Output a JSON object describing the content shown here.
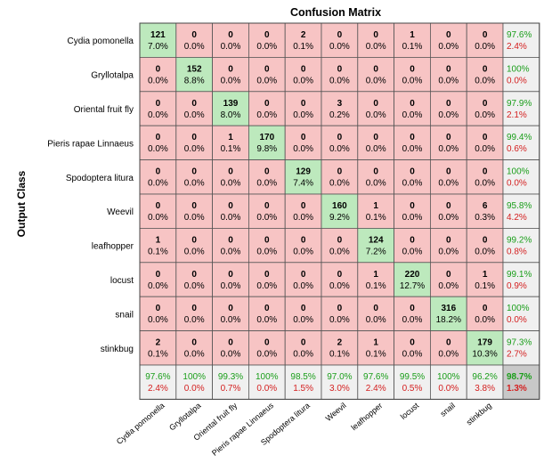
{
  "chart_data": {
    "type": "heatmap",
    "title": "Confusion Matrix",
    "ylabel": "Output Class",
    "xlabel": "",
    "classes": [
      "Cydia pomonella",
      "Gryllotalpa",
      "Oriental fruit fly",
      "Pieris rapae Linnaeus",
      "Spodoptera litura",
      "Weevil",
      "leafhopper",
      "locust",
      "snail",
      "stinkbug"
    ],
    "counts": [
      [
        121,
        0,
        0,
        0,
        2,
        0,
        0,
        1,
        0,
        0
      ],
      [
        0,
        152,
        0,
        0,
        0,
        0,
        0,
        0,
        0,
        0
      ],
      [
        0,
        0,
        139,
        0,
        0,
        3,
        0,
        0,
        0,
        0
      ],
      [
        0,
        0,
        1,
        170,
        0,
        0,
        0,
        0,
        0,
        0
      ],
      [
        0,
        0,
        0,
        0,
        129,
        0,
        0,
        0,
        0,
        0
      ],
      [
        0,
        0,
        0,
        0,
        0,
        160,
        1,
        0,
        0,
        6
      ],
      [
        1,
        0,
        0,
        0,
        0,
        0,
        124,
        0,
        0,
        0
      ],
      [
        0,
        0,
        0,
        0,
        0,
        0,
        1,
        220,
        0,
        1
      ],
      [
        0,
        0,
        0,
        0,
        0,
        0,
        0,
        0,
        316,
        0
      ],
      [
        2,
        0,
        0,
        0,
        0,
        2,
        1,
        0,
        0,
        179
      ]
    ],
    "percents": [
      [
        "7.0%",
        "0.0%",
        "0.0%",
        "0.0%",
        "0.1%",
        "0.0%",
        "0.0%",
        "0.1%",
        "0.0%",
        "0.0%"
      ],
      [
        "0.0%",
        "8.8%",
        "0.0%",
        "0.0%",
        "0.0%",
        "0.0%",
        "0.0%",
        "0.0%",
        "0.0%",
        "0.0%"
      ],
      [
        "0.0%",
        "0.0%",
        "8.0%",
        "0.0%",
        "0.0%",
        "0.2%",
        "0.0%",
        "0.0%",
        "0.0%",
        "0.0%"
      ],
      [
        "0.0%",
        "0.0%",
        "0.1%",
        "9.8%",
        "0.0%",
        "0.0%",
        "0.0%",
        "0.0%",
        "0.0%",
        "0.0%"
      ],
      [
        "0.0%",
        "0.0%",
        "0.0%",
        "0.0%",
        "7.4%",
        "0.0%",
        "0.0%",
        "0.0%",
        "0.0%",
        "0.0%"
      ],
      [
        "0.0%",
        "0.0%",
        "0.0%",
        "0.0%",
        "0.0%",
        "9.2%",
        "0.1%",
        "0.0%",
        "0.0%",
        "0.3%"
      ],
      [
        "0.1%",
        "0.0%",
        "0.0%",
        "0.0%",
        "0.0%",
        "0.0%",
        "7.2%",
        "0.0%",
        "0.0%",
        "0.0%"
      ],
      [
        "0.0%",
        "0.0%",
        "0.0%",
        "0.0%",
        "0.0%",
        "0.0%",
        "0.1%",
        "12.7%",
        "0.0%",
        "0.1%"
      ],
      [
        "0.0%",
        "0.0%",
        "0.0%",
        "0.0%",
        "0.0%",
        "0.0%",
        "0.0%",
        "0.0%",
        "18.2%",
        "0.0%"
      ],
      [
        "0.1%",
        "0.0%",
        "0.0%",
        "0.0%",
        "0.0%",
        "0.1%",
        "0.1%",
        "0.0%",
        "0.0%",
        "10.3%"
      ]
    ],
    "row_summary": [
      [
        "97.6%",
        "2.4%"
      ],
      [
        "100%",
        "0.0%"
      ],
      [
        "97.9%",
        "2.1%"
      ],
      [
        "99.4%",
        "0.6%"
      ],
      [
        "100%",
        "0.0%"
      ],
      [
        "95.8%",
        "4.2%"
      ],
      [
        "99.2%",
        "0.8%"
      ],
      [
        "99.1%",
        "0.9%"
      ],
      [
        "100%",
        "0.0%"
      ],
      [
        "97.3%",
        "2.7%"
      ]
    ],
    "col_summary": [
      [
        "97.6%",
        "2.4%"
      ],
      [
        "100%",
        "0.0%"
      ],
      [
        "99.3%",
        "0.7%"
      ],
      [
        "100%",
        "0.0%"
      ],
      [
        "98.5%",
        "1.5%"
      ],
      [
        "97.0%",
        "3.0%"
      ],
      [
        "97.6%",
        "2.4%"
      ],
      [
        "99.5%",
        "0.5%"
      ],
      [
        "100%",
        "0.0%"
      ],
      [
        "96.2%",
        "3.8%"
      ]
    ],
    "overall": [
      "98.7%",
      "1.3%"
    ]
  },
  "colors": {
    "correct": "#bde9bd",
    "incorrect": "#f7c4c4",
    "summary": "#f0f0f0",
    "overall": "#c8c8c8",
    "good_text": "#1a9e1a",
    "bad_text": "#d42020"
  }
}
